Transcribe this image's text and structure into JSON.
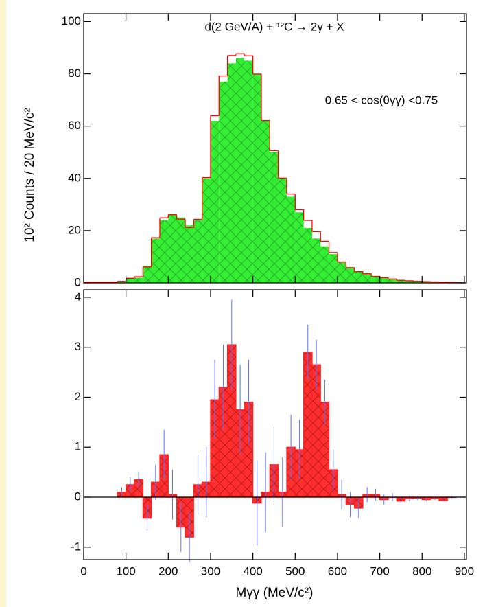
{
  "chart_data": [
    {
      "type": "histogram",
      "title": "d(2 GeV/A) + ¹²C → 2γ + X",
      "annotation": "0.65 < cos(θγγ) <0.75",
      "y_label": "10² Counts / 20 MeV/c²",
      "xlim": [
        0,
        905
      ],
      "xticks": [
        0,
        100,
        200,
        300,
        400,
        500,
        600,
        700,
        800,
        900
      ],
      "ylim": [
        0,
        103
      ],
      "yticks": [
        0,
        20,
        40,
        60,
        80,
        100
      ],
      "bins": [
        0,
        20,
        40,
        60,
        80,
        100,
        120,
        140,
        160,
        180,
        200,
        220,
        240,
        260,
        280,
        300,
        320,
        340,
        360,
        380,
        400,
        420,
        440,
        460,
        480,
        500,
        520,
        540,
        560,
        580,
        600,
        620,
        640,
        660,
        680,
        700,
        720,
        740,
        760,
        780,
        800,
        820,
        840,
        860,
        880,
        900
      ],
      "series": [
        {
          "style": "filled",
          "color": "#33ee33",
          "values": [
            0.3,
            0.3,
            0.3,
            0.3,
            0.5,
            1.5,
            2,
            6.5,
            17,
            24,
            26,
            25,
            22,
            24,
            40,
            62,
            77,
            84,
            86,
            85,
            80,
            62,
            50,
            40,
            33,
            27,
            21,
            17,
            14,
            11,
            8,
            6,
            4.5,
            3.5,
            2.5,
            2,
            1.5,
            1,
            0.8,
            0.6,
            0.5,
            0.4,
            0.3,
            0.2,
            0.1
          ]
        },
        {
          "style": "step",
          "color": "#ff0000",
          "values": [
            0.3,
            0.3,
            0.3,
            0.3,
            0.6,
            1.75,
            2.35,
            6.1,
            17.3,
            24.9,
            26.1,
            24.4,
            21.2,
            24.3,
            40.3,
            64,
            79.2,
            87,
            87.7,
            86.9,
            79.9,
            62.1,
            50.6,
            40.1,
            34,
            28,
            23.9,
            19.6,
            15.9,
            11.6,
            8,
            5.8,
            4.3,
            3.5,
            2.5,
            2,
            1.5,
            1,
            0.8,
            0.6,
            0.5,
            0.4,
            0.3,
            0.2,
            0.1
          ]
        }
      ]
    },
    {
      "type": "histogram",
      "x_label": "Mγγ (MeV/c²)",
      "xlim": [
        0,
        905
      ],
      "xticks": [
        0,
        100,
        200,
        300,
        400,
        500,
        600,
        700,
        800,
        900
      ],
      "ylim": [
        -1.25,
        4.15
      ],
      "yticks": [
        -1,
        0,
        1,
        2,
        3,
        4
      ],
      "zero_line": true,
      "bins": [
        80,
        100,
        120,
        140,
        160,
        180,
        200,
        220,
        240,
        260,
        280,
        300,
        320,
        340,
        360,
        380,
        400,
        420,
        440,
        460,
        480,
        500,
        520,
        540,
        560,
        580,
        600,
        620,
        640,
        660,
        680,
        700,
        720,
        740,
        760,
        780,
        800,
        820,
        840,
        860,
        880
      ],
      "color": "#ff2020",
      "error_color": "#6070ff",
      "values": [
        0.1,
        0.25,
        0.35,
        -0.42,
        0.3,
        0.85,
        0.05,
        -0.6,
        -0.8,
        0.25,
        0.3,
        1.95,
        2.2,
        3.05,
        1.75,
        1.9,
        -0.12,
        0.1,
        0.65,
        0.1,
        1,
        0.95,
        2.9,
        2.65,
        1.9,
        0.55,
        0.05,
        -0.15,
        -0.22,
        0.05,
        0.05,
        -0.05,
        0,
        -0.08,
        -0.03,
        -0.02,
        -0.05,
        -0.03,
        -0.07,
        0
      ],
      "errors": [
        0.1,
        0.15,
        0.15,
        0.25,
        0.35,
        0.5,
        0.5,
        0.5,
        0.5,
        0.6,
        0.7,
        0.8,
        0.85,
        0.9,
        0.9,
        0.85,
        0.85,
        0.8,
        0.75,
        0.7,
        0.65,
        0.6,
        0.55,
        0.5,
        0.45,
        0.4,
        0.3,
        0.25,
        0.2,
        0.15,
        0.12,
        0.1,
        0.08,
        0.06,
        0.05,
        0.04,
        0.03,
        0.03,
        0.02,
        0.02
      ]
    }
  ]
}
